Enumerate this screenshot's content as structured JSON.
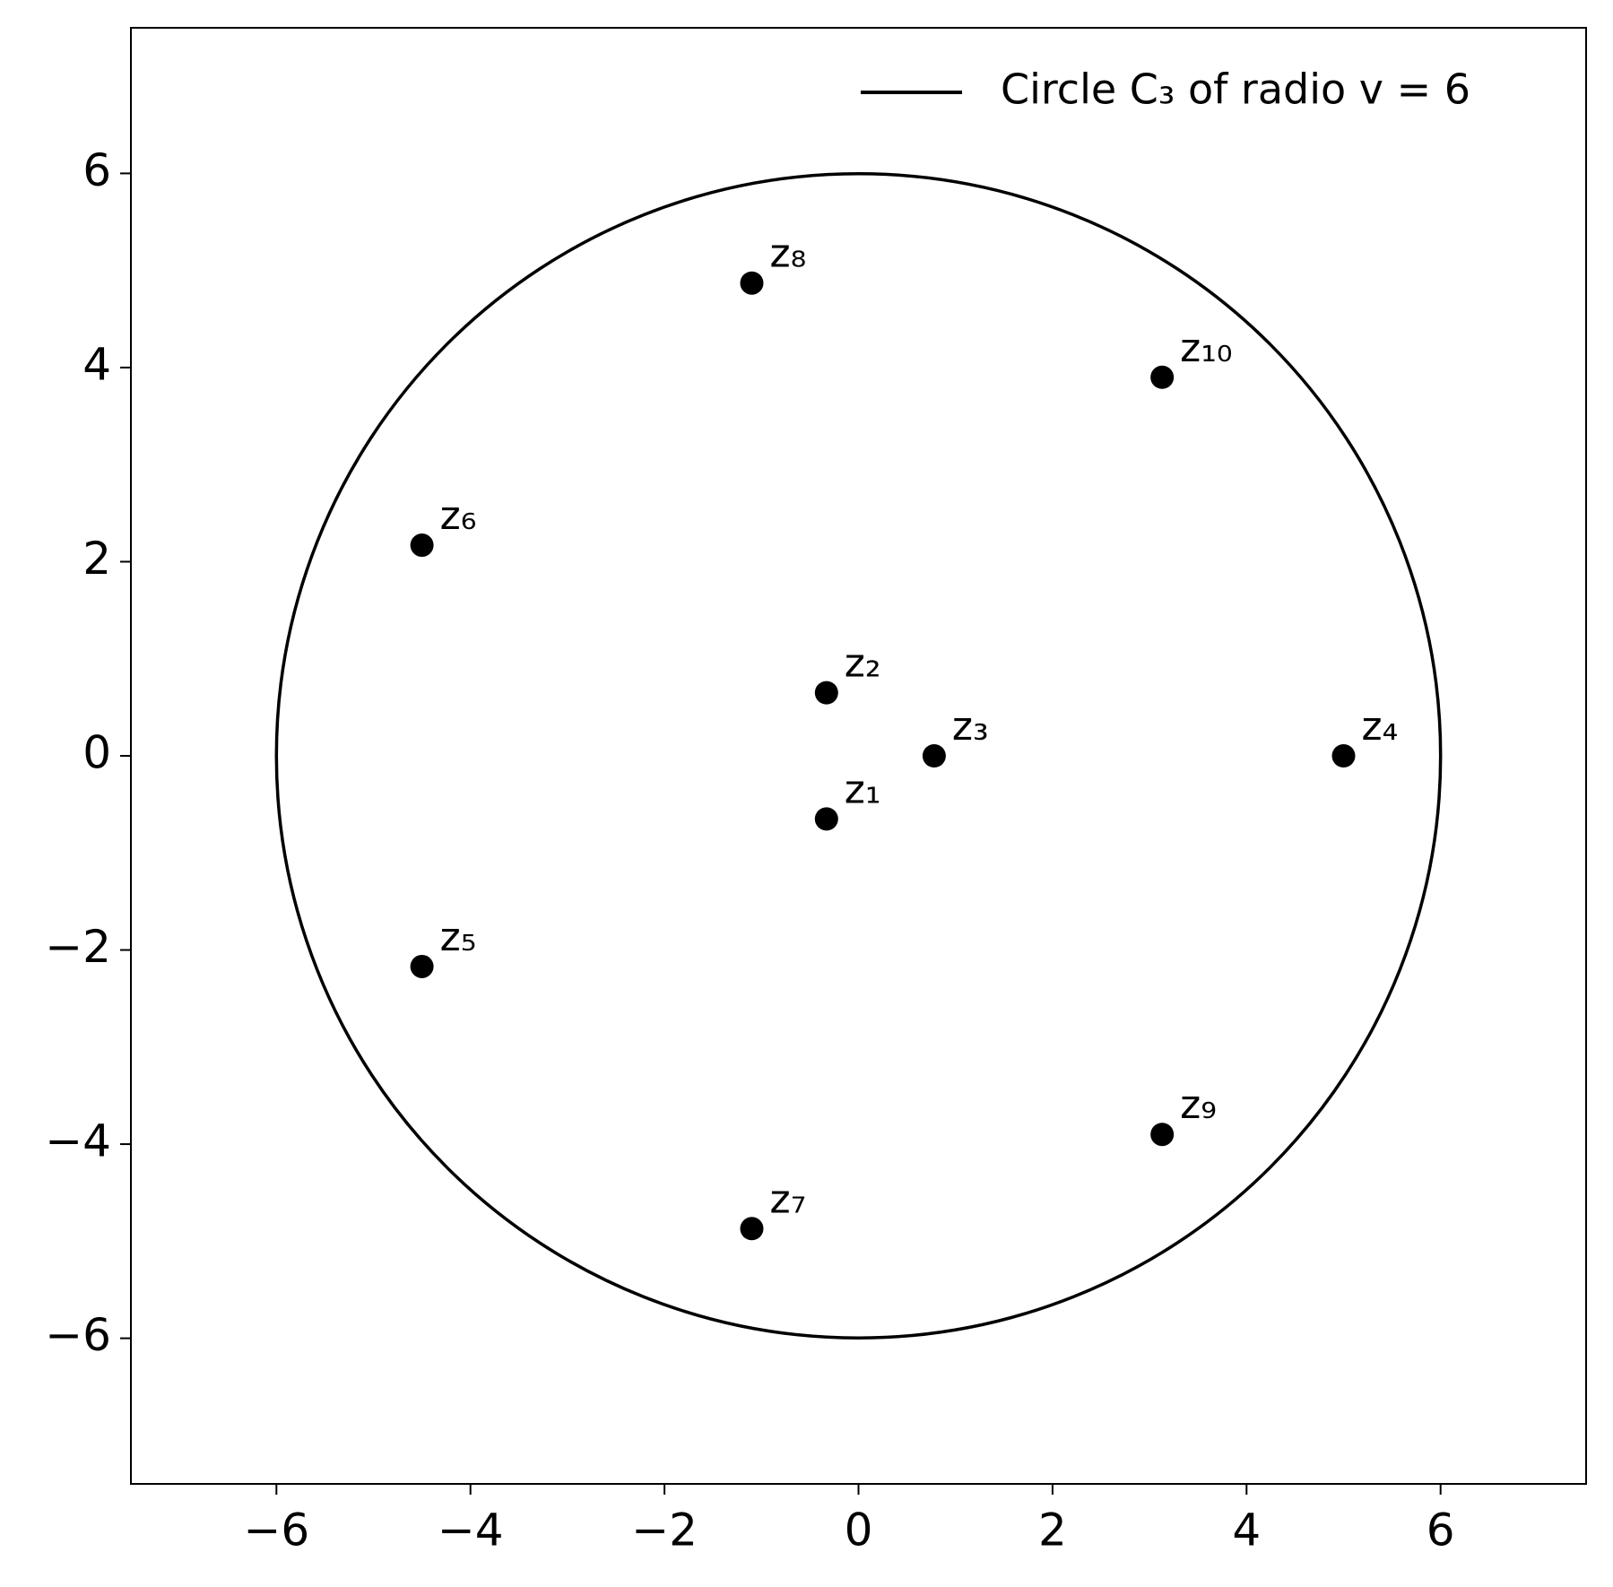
{
  "chart_data": {
    "type": "scatter",
    "x": [
      -0.33,
      -0.33,
      0.78,
      5,
      -4.5,
      -4.5,
      -1.1,
      -1.1,
      3.13,
      3.13
    ],
    "y": [
      -0.65,
      0.65,
      0,
      0,
      -2.17,
      2.17,
      -4.87,
      4.87,
      -3.9,
      3.9
    ],
    "point_labels": [
      "z₁",
      "z₂",
      "z₃",
      "z₄",
      "z₅",
      "z₆",
      "z₇",
      "z₈",
      "z₉",
      "z₁₀"
    ],
    "color": "#000000",
    "circle": {
      "center": [
        0,
        0
      ],
      "radius": 6,
      "label": "Circle C₃ of radio v = 6",
      "color": "#000000"
    },
    "legend": "upper right",
    "xlim": [
      -7.5,
      7.5
    ],
    "ylim": [
      -7.5,
      7.5
    ],
    "xticks": [
      {
        "value": -6,
        "label": "−6"
      },
      {
        "value": -4,
        "label": "−4"
      },
      {
        "value": -2,
        "label": "−2"
      },
      0,
      2,
      4,
      6
    ],
    "yticks": [
      {
        "value": -6,
        "label": "−6"
      },
      {
        "value": -4,
        "label": "−4"
      },
      {
        "value": -2,
        "label": "−2"
      },
      0,
      2,
      4,
      6
    ]
  }
}
